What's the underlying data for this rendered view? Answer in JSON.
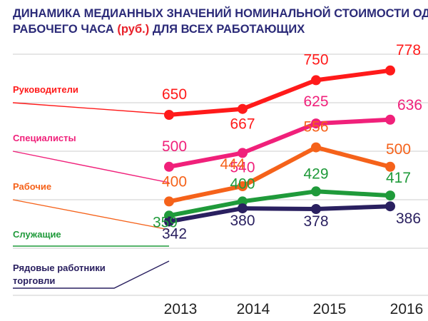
{
  "chart_data": {
    "type": "line",
    "title_line1": "ДИНАМИКА МЕДИАННЫХ ЗНАЧЕНИЙ НОМИНАЛЬНОЙ СТОИМОСТИ ОДНОГО",
    "title_line2_a": "РАБОЧЕГО ЧАСА ",
    "title_line2_b": "(руб.)",
    "title_line2_c": " ДЛЯ ВСЕХ РАБОТАЮЩИХ",
    "categories": [
      "2013",
      "2014",
      "2015",
      "2016"
    ],
    "series": [
      {
        "name": "Руководители",
        "color": "#ff1a1a",
        "values": [
          650,
          667,
          750,
          778
        ]
      },
      {
        "name": "Специалисты",
        "color": "#f0207a",
        "values": [
          500,
          540,
          625,
          636
        ]
      },
      {
        "name": "Рабочие",
        "color": "#f5621a",
        "values": [
          400,
          444,
          556,
          500
        ]
      },
      {
        "name": "Служащие",
        "color": "#1f9a3a",
        "values": [
          359,
          400,
          429,
          417
        ]
      },
      {
        "name_line1": "Рядовые работники",
        "name_line2": "торговли",
        "color": "#2a2060",
        "values": [
          342,
          380,
          378,
          386
        ]
      }
    ],
    "grid": true,
    "legend": "left"
  },
  "colors": {
    "title": "#2b2a78",
    "title_accent": "#e8202a",
    "grid": "#cccccc"
  }
}
